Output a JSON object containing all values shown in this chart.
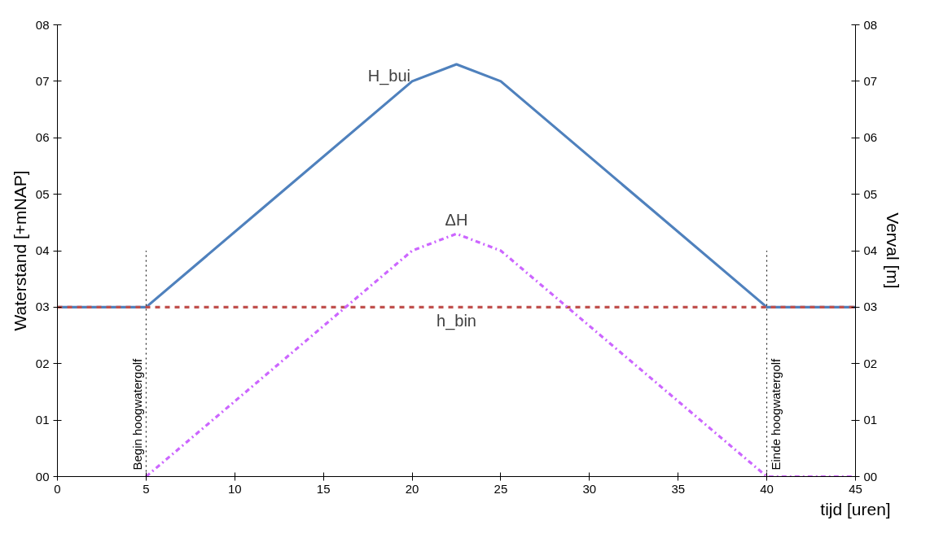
{
  "chart_data": {
    "type": "line",
    "xlabel": "tijd [uren]",
    "ylabel": "Waterstand [+mNAP]",
    "y2label": "Verval [m]",
    "xlim": [
      0,
      45
    ],
    "xticks": [
      0,
      5,
      10,
      15,
      20,
      25,
      30,
      35,
      40,
      45
    ],
    "ylim": [
      0,
      8
    ],
    "yticks": [
      {
        "value": 0,
        "label": "00"
      },
      {
        "value": 1,
        "label": "01"
      },
      {
        "value": 2,
        "label": "02"
      },
      {
        "value": 3,
        "label": "03"
      },
      {
        "value": 4,
        "label": "04"
      },
      {
        "value": 5,
        "label": "05"
      },
      {
        "value": 6,
        "label": "06"
      },
      {
        "value": 7,
        "label": "07"
      },
      {
        "value": 8,
        "label": "08"
      }
    ],
    "y2lim": [
      0,
      8
    ],
    "y2ticks": [
      {
        "value": 0,
        "label": "00"
      },
      {
        "value": 1,
        "label": "01"
      },
      {
        "value": 2,
        "label": "02"
      },
      {
        "value": 3,
        "label": "03"
      },
      {
        "value": 4,
        "label": "04"
      },
      {
        "value": 5,
        "label": "05"
      },
      {
        "value": 6,
        "label": "06"
      },
      {
        "value": 7,
        "label": "07"
      },
      {
        "value": 8,
        "label": "08"
      }
    ],
    "series": [
      {
        "name": "H_bui",
        "color": "#4f81bd",
        "line_style": "solid",
        "x": [
          0,
          5,
          20,
          22.5,
          25,
          40,
          45
        ],
        "values": [
          3,
          3,
          7,
          7.3,
          7,
          3,
          3
        ]
      },
      {
        "name": "h_bin",
        "color": "#c0504d",
        "line_style": "dashed",
        "x": [
          0,
          45
        ],
        "values": [
          3,
          3
        ]
      },
      {
        "name": "ΔH",
        "color": "#cc66ff",
        "line_style": "dashdot",
        "axis": "y2",
        "x": [
          5,
          20,
          22.5,
          25,
          40,
          45
        ],
        "values": [
          0,
          4,
          4.3,
          4,
          0,
          0
        ]
      }
    ],
    "ref_lines": [
      {
        "axis": "x",
        "value": 5,
        "label": "Begin hoogwatergolf",
        "line_style": "dotted",
        "color": "#000000"
      },
      {
        "axis": "x",
        "value": 40,
        "label": "Einde hoogwatergolf",
        "line_style": "dotted",
        "color": "#000000"
      }
    ],
    "grid": false,
    "marker": "none"
  }
}
